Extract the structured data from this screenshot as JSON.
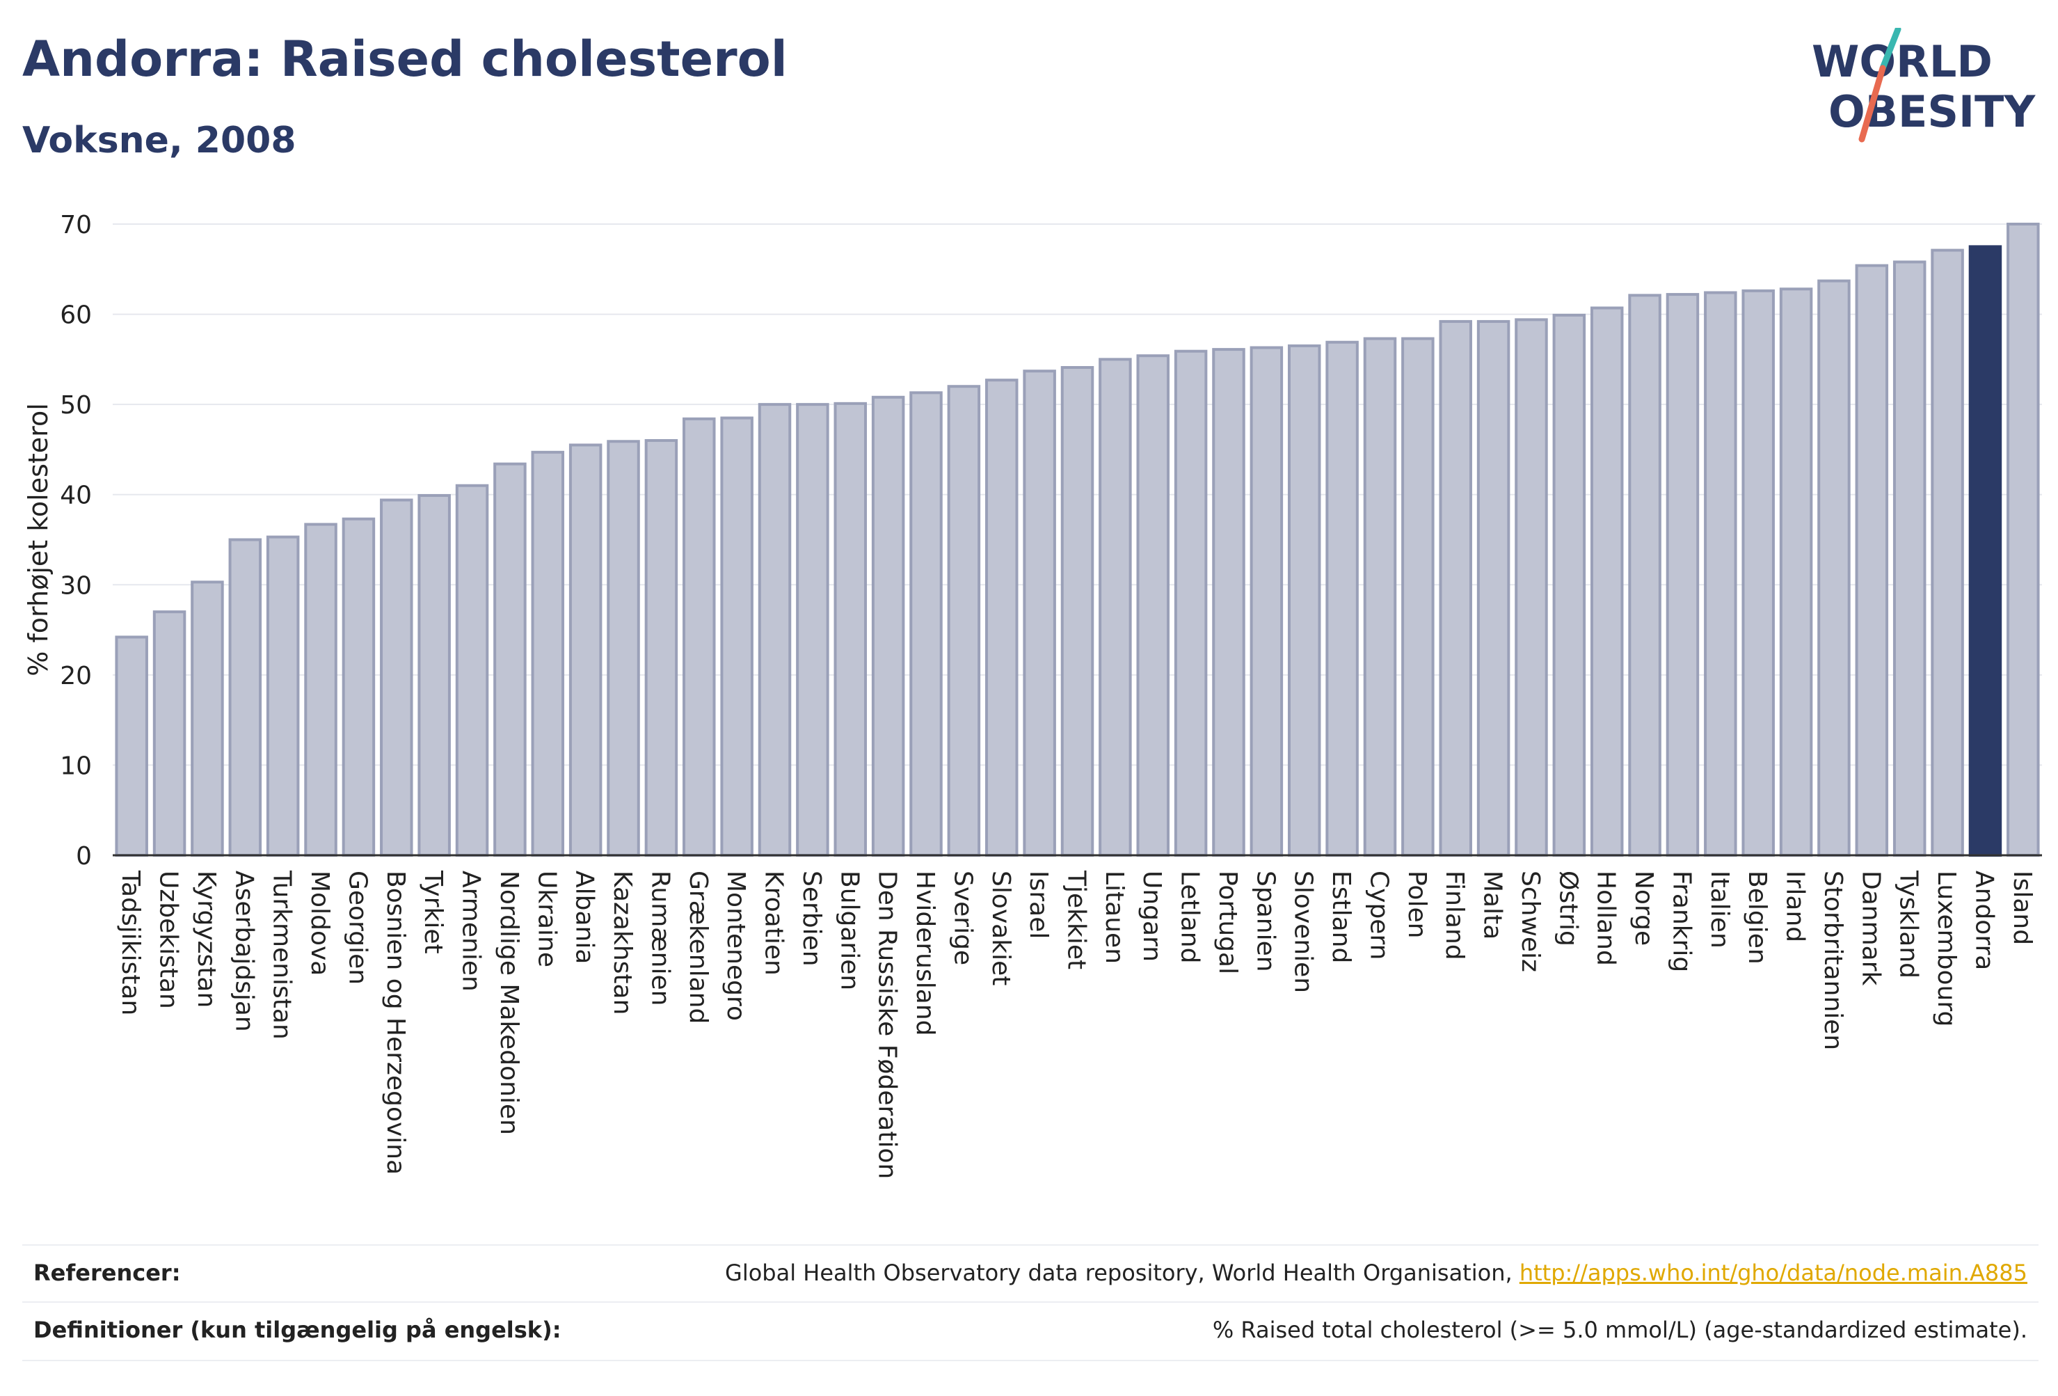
{
  "header": {
    "title": "Andorra: Raised cholesterol",
    "subtitle": "Voksne, 2008"
  },
  "logo": {
    "line1": "WORLD",
    "line2": "OBESITY"
  },
  "footer": {
    "references_label": "Referencer:",
    "references_text": "Global Health Observatory data repository, World Health Organisation, ",
    "references_link": "http://apps.who.int/gho/data/node.main.A885",
    "definitions_label": "Definitioner (kun tilgængelig på engelsk):",
    "definitions_text": "% Raised total cholesterol (>= 5.0 mmol/L) (age-standardized estimate)."
  },
  "colors": {
    "bar": "#c0c4d3",
    "bar_border": "#9aa0b8",
    "highlight": "#2b3a66",
    "grid": "#e6e8ee"
  },
  "chart_data": {
    "type": "bar",
    "ylabel": "% forhøjet kolesterol",
    "ylim": [
      0,
      70
    ],
    "yticks": [
      0,
      10,
      20,
      30,
      40,
      50,
      60,
      70
    ],
    "grid": true,
    "highlight": "Andorra",
    "categories": [
      "Tadsjikistan",
      "Uzbekistan",
      "Kyrgyzstan",
      "Aserbajdsjan",
      "Turkmenistan",
      "Moldova",
      "Georgien",
      "Bosnien og Herzegovina",
      "Tyrkiet",
      "Armenien",
      "Nordlige Makedonien",
      "Ukraine",
      "Albania",
      "Kazakhstan",
      "Rumænien",
      "Grækenland",
      "Montenegro",
      "Kroatien",
      "Serbien",
      "Bulgarien",
      "Den Russiske Føderation",
      "Hviderusland",
      "Sverige",
      "Slovakiet",
      "Israel",
      "Tjekkiet",
      "Litauen",
      "Ungarn",
      "Letland",
      "Portugal",
      "Spanien",
      "Slovenien",
      "Estland",
      "Cypern",
      "Polen",
      "Finland",
      "Malta",
      "Schweiz",
      "Østrig",
      "Holland",
      "Norge",
      "Frankrig",
      "Italien",
      "Belgien",
      "Irland",
      "Storbritannien",
      "Danmark",
      "Tyskland",
      "Luxembourg",
      "Andorra",
      "Island"
    ],
    "values": [
      24.2,
      27.0,
      30.3,
      35.0,
      35.3,
      36.7,
      37.3,
      39.4,
      39.9,
      41.0,
      43.4,
      44.7,
      45.5,
      45.9,
      46.0,
      48.4,
      48.5,
      50.0,
      50.0,
      50.1,
      50.8,
      51.3,
      52.0,
      52.7,
      53.7,
      54.1,
      55.0,
      55.4,
      55.9,
      56.1,
      56.3,
      56.5,
      56.9,
      57.3,
      57.3,
      59.2,
      59.2,
      59.4,
      59.9,
      60.7,
      62.1,
      62.2,
      62.4,
      62.6,
      62.8,
      63.7,
      65.4,
      65.8,
      67.1,
      67.5,
      70.0
    ]
  }
}
